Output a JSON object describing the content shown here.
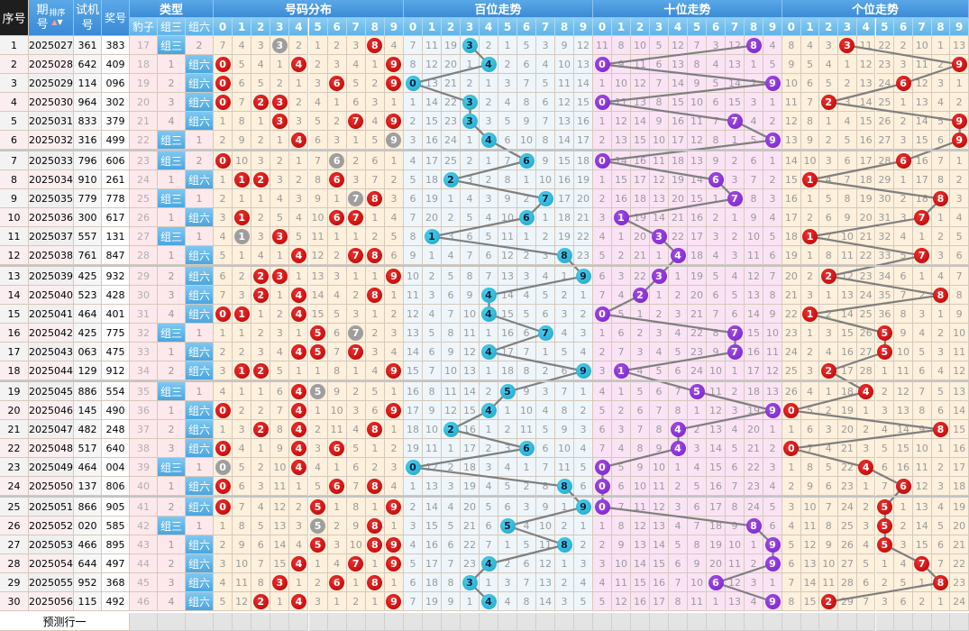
{
  "header": {
    "index": "序号",
    "issue": "期号",
    "sort": "排序",
    "trial": "试机号",
    "draw": "奖号",
    "type": "类型",
    "type_cols": [
      "豹子",
      "组三",
      "组六"
    ],
    "dist": "号码分布",
    "hundreds": "百位走势",
    "tens": "十位走势",
    "units": "个位走势",
    "digits": [
      "0",
      "1",
      "2",
      "3",
      "4",
      "5",
      "6",
      "7",
      "8",
      "9"
    ]
  },
  "rows": [
    {
      "no": "1",
      "issue": "2025027",
      "trial": "361",
      "draw": "383",
      "type": [
        "17",
        "组三",
        "2"
      ]
    },
    {
      "no": "2",
      "issue": "2025028",
      "trial": "642",
      "draw": "409",
      "type": [
        "18",
        "1",
        "组六"
      ]
    },
    {
      "no": "3",
      "issue": "2025029",
      "trial": "114",
      "draw": "096",
      "type": [
        "19",
        "2",
        "组六"
      ]
    },
    {
      "no": "4",
      "issue": "2025030",
      "trial": "964",
      "draw": "302",
      "type": [
        "20",
        "3",
        "组六"
      ]
    },
    {
      "no": "5",
      "issue": "2025031",
      "trial": "833",
      "draw": "379",
      "type": [
        "21",
        "4",
        "组六"
      ]
    },
    {
      "no": "6",
      "issue": "2025032",
      "trial": "316",
      "draw": "499",
      "type": [
        "22",
        "组三",
        "1"
      ]
    },
    {
      "no": "7",
      "issue": "2025033",
      "trial": "796",
      "draw": "606",
      "type": [
        "23",
        "组三",
        "2"
      ]
    },
    {
      "no": "8",
      "issue": "2025034",
      "trial": "910",
      "draw": "261",
      "type": [
        "24",
        "1",
        "组六"
      ]
    },
    {
      "no": "9",
      "issue": "2025035",
      "trial": "779",
      "draw": "778",
      "type": [
        "25",
        "组三",
        "1"
      ]
    },
    {
      "no": "10",
      "issue": "2025036",
      "trial": "300",
      "draw": "617",
      "type": [
        "26",
        "1",
        "组六"
      ]
    },
    {
      "no": "11",
      "issue": "2025037",
      "trial": "557",
      "draw": "131",
      "type": [
        "27",
        "组三",
        "1"
      ]
    },
    {
      "no": "12",
      "issue": "2025038",
      "trial": "761",
      "draw": "847",
      "type": [
        "28",
        "1",
        "组六"
      ]
    },
    {
      "no": "13",
      "issue": "2025039",
      "trial": "425",
      "draw": "932",
      "type": [
        "29",
        "2",
        "组六"
      ]
    },
    {
      "no": "14",
      "issue": "2025040",
      "trial": "523",
      "draw": "428",
      "type": [
        "30",
        "3",
        "组六"
      ]
    },
    {
      "no": "15",
      "issue": "2025041",
      "trial": "464",
      "draw": "401",
      "type": [
        "31",
        "4",
        "组六"
      ]
    },
    {
      "no": "16",
      "issue": "2025042",
      "trial": "425",
      "draw": "775",
      "type": [
        "32",
        "组三",
        "1"
      ]
    },
    {
      "no": "17",
      "issue": "2025043",
      "trial": "063",
      "draw": "475",
      "type": [
        "33",
        "1",
        "组六"
      ]
    },
    {
      "no": "18",
      "issue": "2025044",
      "trial": "129",
      "draw": "912",
      "type": [
        "34",
        "2",
        "组六"
      ]
    },
    {
      "no": "19",
      "issue": "2025045",
      "trial": "886",
      "draw": "554",
      "type": [
        "35",
        "组三",
        "1"
      ]
    },
    {
      "no": "20",
      "issue": "2025046",
      "trial": "145",
      "draw": "490",
      "type": [
        "36",
        "1",
        "组六"
      ]
    },
    {
      "no": "21",
      "issue": "2025047",
      "trial": "482",
      "draw": "248",
      "type": [
        "37",
        "2",
        "组六"
      ]
    },
    {
      "no": "22",
      "issue": "2025048",
      "trial": "517",
      "draw": "640",
      "type": [
        "38",
        "3",
        "组六"
      ]
    },
    {
      "no": "23",
      "issue": "2025049",
      "trial": "464",
      "draw": "004",
      "type": [
        "39",
        "组三",
        "1"
      ]
    },
    {
      "no": "24",
      "issue": "2025050",
      "trial": "137",
      "draw": "806",
      "type": [
        "40",
        "1",
        "组六"
      ]
    },
    {
      "no": "25",
      "issue": "2025051",
      "trial": "866",
      "draw": "905",
      "type": [
        "41",
        "2",
        "组六"
      ]
    },
    {
      "no": "26",
      "issue": "2025052",
      "trial": "020",
      "draw": "585",
      "type": [
        "42",
        "组三",
        "1"
      ]
    },
    {
      "no": "27",
      "issue": "2025053",
      "trial": "466",
      "draw": "895",
      "type": [
        "43",
        "1",
        "组六"
      ]
    },
    {
      "no": "28",
      "issue": "2025054",
      "trial": "644",
      "draw": "497",
      "type": [
        "44",
        "2",
        "组六"
      ]
    },
    {
      "no": "29",
      "issue": "2025055",
      "trial": "952",
      "draw": "368",
      "type": [
        "45",
        "3",
        "组六"
      ]
    },
    {
      "no": "30",
      "issue": "2025056",
      "trial": "115",
      "draw": "492",
      "type": [
        "46",
        "4",
        "组六"
      ]
    }
  ],
  "omission_first_row": {
    "dist": [
      7,
      4,
      3,
      0,
      2,
      1,
      2,
      3,
      0,
      4
    ],
    "hundreds": [
      7,
      11,
      19,
      0,
      2,
      1,
      5,
      3,
      9,
      12
    ],
    "tens": [
      11,
      8,
      10,
      5,
      12,
      7,
      3,
      12,
      0,
      4
    ],
    "units": [
      8,
      4,
      3,
      0,
      11,
      22,
      2,
      10,
      1,
      13
    ]
  },
  "footer": {
    "predict": "预测行一"
  },
  "colors": {
    "header_blue": "#3b8ad6",
    "subheader_blue": "#5fb3e8",
    "type_bg": "#fde8ec",
    "dist_bg": "#fdf0dc",
    "hundreds_bg": "#eef6fb",
    "tens_bg": "#fbe3f6",
    "units_bg": "#fdf0dc",
    "ball_red": "#c80000",
    "ball_gray": "#9e9e9e",
    "ball_cyan": "#1aa4c8",
    "ball_purple": "#7a1fc8",
    "line": "#7f7f7f"
  }
}
